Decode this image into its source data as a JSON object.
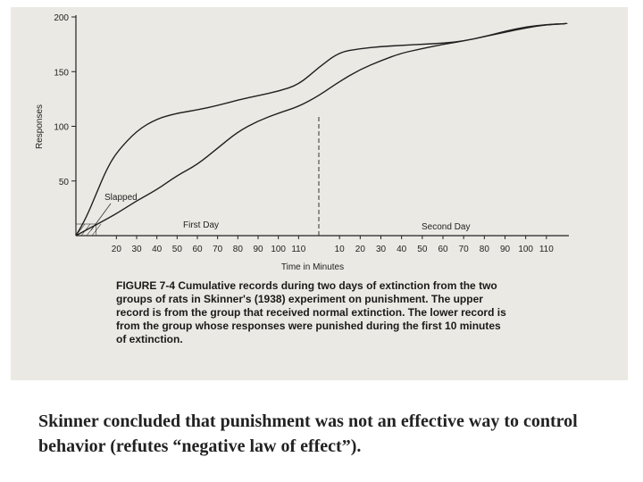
{
  "chart_data": {
    "type": "line",
    "title": "Cumulative records during two days of extinction",
    "ylabel": "Responses",
    "xlabel": "Time in Minutes",
    "ylim": [
      0,
      200
    ],
    "yticks": [
      50,
      100,
      150,
      200
    ],
    "day_labels": [
      "First Day",
      "Second Day"
    ],
    "annotation": "Slapped",
    "day1_ticks": [
      "20",
      "30",
      "40",
      "50",
      "60",
      "70",
      "80",
      "90",
      "100",
      "110"
    ],
    "day2_ticks": [
      "10",
      "20",
      "30",
      "40",
      "50",
      "60",
      "70",
      "80",
      "90",
      "100",
      "110"
    ],
    "series": [
      {
        "name": "Normal extinction (upper record)",
        "x": [
          0,
          5,
          10,
          15,
          20,
          30,
          40,
          50,
          60,
          70,
          80,
          90,
          100,
          110,
          120,
          130,
          140,
          150,
          160,
          170,
          180,
          190,
          200,
          210,
          220,
          230,
          240
        ],
        "values": [
          0,
          16,
          38,
          60,
          76,
          96,
          107,
          112,
          115,
          119,
          124,
          128,
          132,
          138,
          154,
          168,
          171,
          173,
          174,
          175,
          176,
          178,
          182,
          187,
          191,
          193,
          194
        ]
      },
      {
        "name": "Punished during first 10 minutes (lower record)",
        "x": [
          0,
          5,
          10,
          20,
          30,
          40,
          50,
          60,
          70,
          80,
          90,
          100,
          110,
          120,
          130,
          140,
          150,
          160,
          170,
          180,
          190,
          200,
          210,
          220,
          230,
          240
        ],
        "values": [
          0,
          5,
          10,
          20,
          32,
          42,
          55,
          65,
          80,
          95,
          105,
          112,
          118,
          128,
          141,
          152,
          160,
          167,
          171,
          175,
          178,
          182,
          186,
          190,
          193,
          194
        ]
      }
    ]
  },
  "caption": {
    "figure_label": "FIGURE 7-4",
    "text": "Cumulative records during two days of extinction from the two groups of rats in Skinner's (1938) experiment on punishment. The upper record is from the group that received normal extinction. The lower record is from the group whose responses were punished during the first 10 minutes of extinction."
  },
  "bottom_text": "Skinner concluded that punishment was not an effective way to control behavior (refutes “negative law of effect”)."
}
